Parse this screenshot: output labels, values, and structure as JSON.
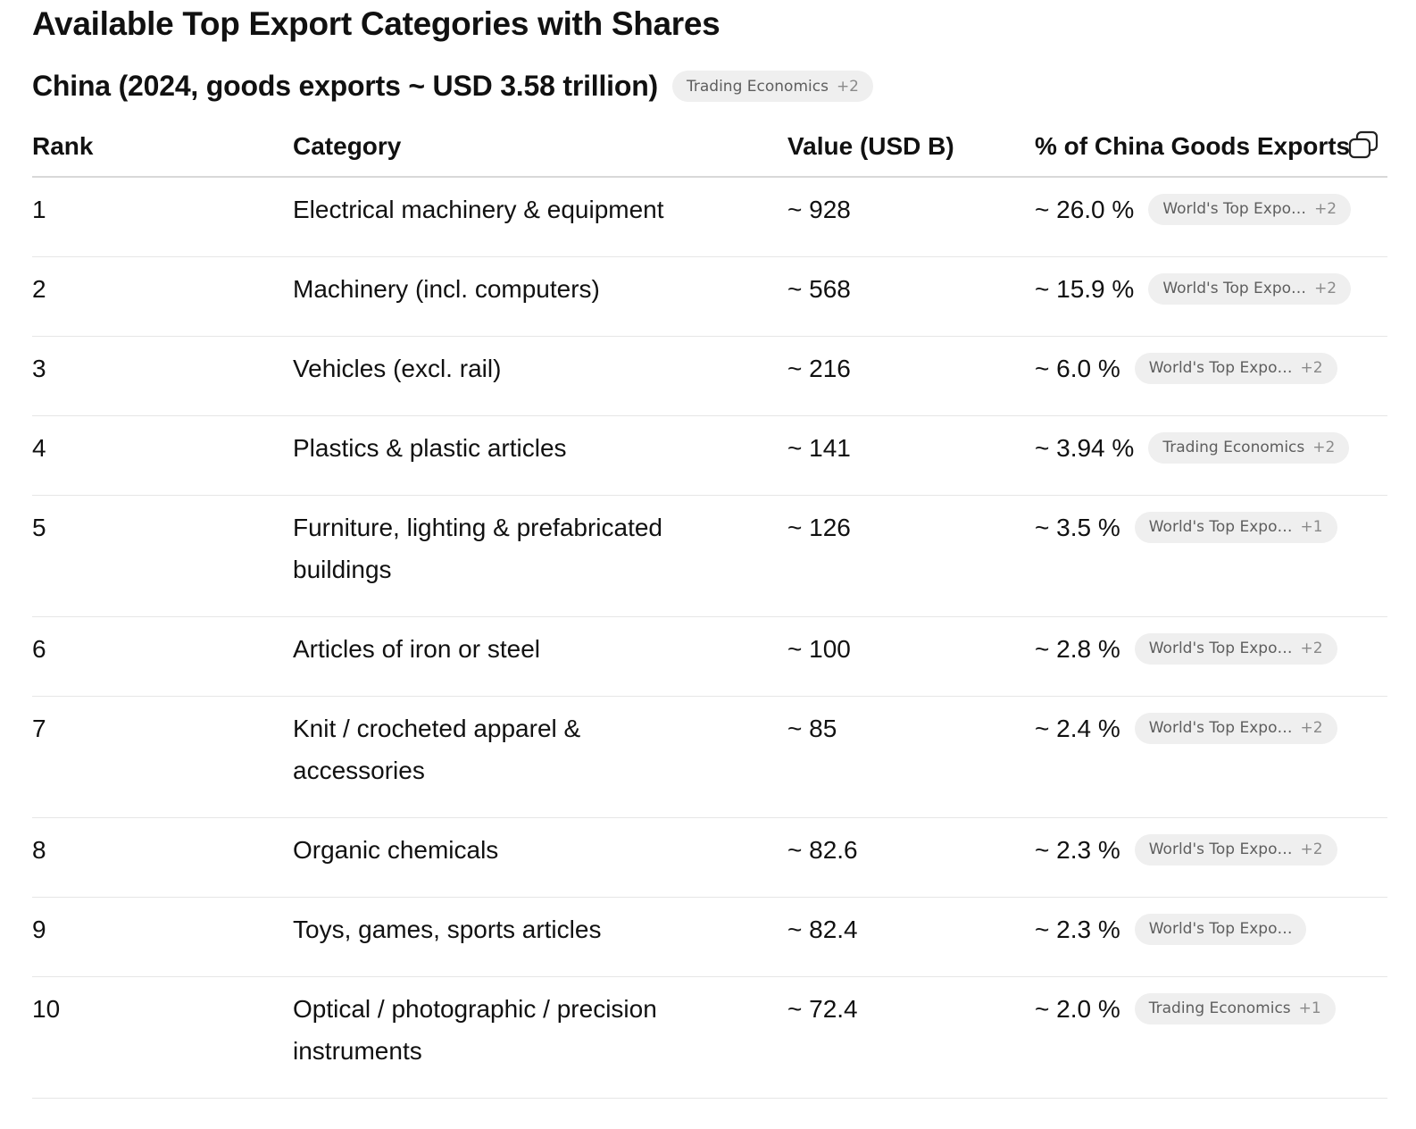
{
  "title": "Available Top Export Categories with Shares",
  "subtitle": "China (2024, goods exports ~ USD 3.58 trillion)",
  "subtitle_source": {
    "label": "Trading Economics",
    "more": "+2"
  },
  "table": {
    "headers": {
      "rank": "Rank",
      "category": "Category",
      "value": "Value (USD B)",
      "share": "% of China Goods Exports"
    },
    "rows": [
      {
        "rank": "1",
        "category": "Electrical machinery & equipment",
        "value": "~ 928",
        "share": "~ 26.0 %",
        "source": "World's Top Expo…",
        "more": "+2"
      },
      {
        "rank": "2",
        "category": "Machinery (incl. computers)",
        "value": "~ 568",
        "share": "~ 15.9 %",
        "source": "World's Top Expo…",
        "more": "+2"
      },
      {
        "rank": "3",
        "category": "Vehicles (excl. rail)",
        "value": "~ 216",
        "share": "~ 6.0 %",
        "source": "World's Top Expo…",
        "more": "+2"
      },
      {
        "rank": "4",
        "category": "Plastics & plastic articles",
        "value": "~ 141",
        "share": "~ 3.94 %",
        "source": "Trading Economics",
        "more": "+2"
      },
      {
        "rank": "5",
        "category": "Furniture, lighting & prefabricated buildings",
        "value": "~ 126",
        "share": "~ 3.5 %",
        "source": "World's Top Expo…",
        "more": "+1"
      },
      {
        "rank": "6",
        "category": "Articles of iron or steel",
        "value": "~ 100",
        "share": "~ 2.8 %",
        "source": "World's Top Expo…",
        "more": "+2"
      },
      {
        "rank": "7",
        "category": "Knit / crocheted apparel & accessories",
        "value": "~ 85",
        "share": "~ 2.4 %",
        "source": "World's Top Expo…",
        "more": "+2"
      },
      {
        "rank": "8",
        "category": "Organic chemicals",
        "value": "~ 82.6",
        "share": "~ 2.3 %",
        "source": "World's Top Expo…",
        "more": "+2"
      },
      {
        "rank": "9",
        "category": "Toys, games, sports articles",
        "value": "~ 82.4",
        "share": "~ 2.3 %",
        "source": "World's Top Expo…",
        "more": ""
      },
      {
        "rank": "10",
        "category": "Optical / photographic / precision instruments",
        "value": "~ 72.4",
        "share": "~ 2.0 %",
        "source": "Trading Economics",
        "more": "+1"
      }
    ]
  },
  "icons": {
    "copy": "copy-icon"
  }
}
